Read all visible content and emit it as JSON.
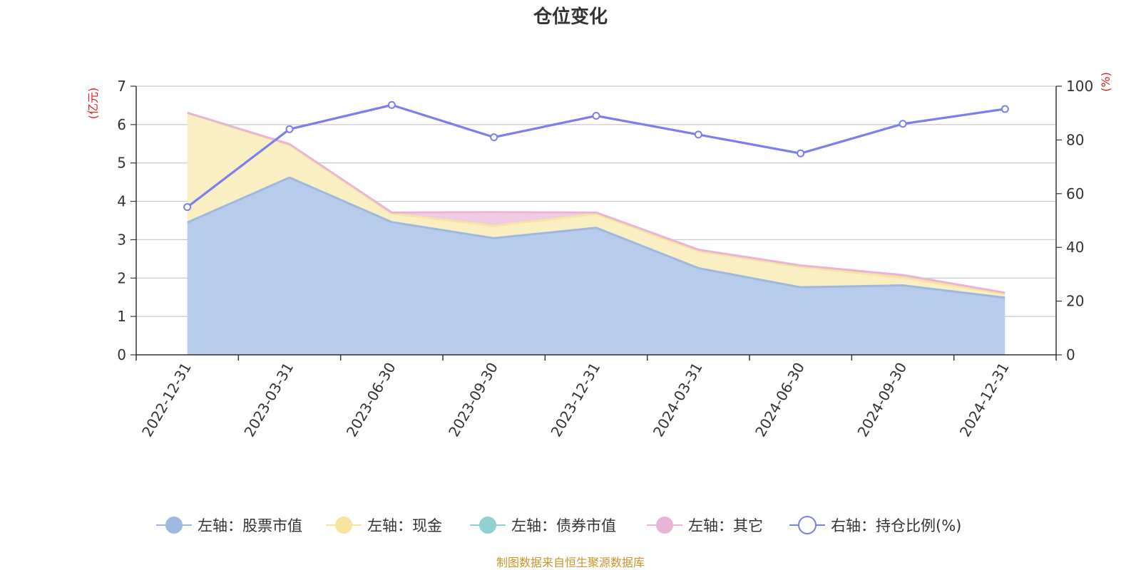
{
  "chart_data": {
    "type": "area",
    "title": "仓位变化",
    "left_axis_unit": "(亿元)",
    "right_axis_unit": "(%)",
    "left_ylim": [
      0,
      7
    ],
    "left_ticks": [
      "0",
      "1",
      "2",
      "3",
      "4",
      "5",
      "6",
      "7"
    ],
    "right_ylim": [
      0,
      100
    ],
    "right_ticks": [
      "0",
      "20",
      "40",
      "60",
      "80",
      "100"
    ],
    "categories": [
      "2022-12-31",
      "2023-03-31",
      "2023-06-30",
      "2023-09-30",
      "2023-12-31",
      "2024-03-31",
      "2024-06-30",
      "2024-09-30",
      "2024-12-31"
    ],
    "series": [
      {
        "name": "左轴：股票市值",
        "axis": "left",
        "kind": "stacked-area",
        "color": "#9fb8e0",
        "fill": "#b7cbea",
        "values": [
          3.45,
          4.62,
          3.46,
          3.04,
          3.31,
          2.26,
          1.76,
          1.81,
          1.49
        ]
      },
      {
        "name": "左轴：现金",
        "axis": "left",
        "kind": "stacked-area",
        "color": "#f7e4a0",
        "fill": "#faefc2",
        "values": [
          2.85,
          0.85,
          0.22,
          0.32,
          0.36,
          0.44,
          0.53,
          0.2,
          0.09
        ]
      },
      {
        "name": "左轴：债券市值",
        "axis": "left",
        "kind": "stacked-area",
        "color": "#8fd0d0",
        "fill": "#a8dcdc",
        "values": [
          0,
          0,
          0,
          0,
          0,
          0,
          0,
          0,
          0
        ]
      },
      {
        "name": "左轴：其它",
        "axis": "left",
        "kind": "stacked-area",
        "color": "#e8b4d8",
        "fill": "#efcce4",
        "values": [
          0.01,
          0.02,
          0.03,
          0.36,
          0.04,
          0.04,
          0.04,
          0.07,
          0.04
        ]
      },
      {
        "name": "右轴：持仓比例(%)",
        "axis": "right",
        "kind": "line",
        "color": "#7a7fee",
        "values": [
          55,
          84,
          93,
          81,
          89,
          82,
          75,
          86,
          91.5
        ]
      }
    ],
    "legend_position": "bottom",
    "source": "制图数据来自恒生聚源数据库"
  }
}
